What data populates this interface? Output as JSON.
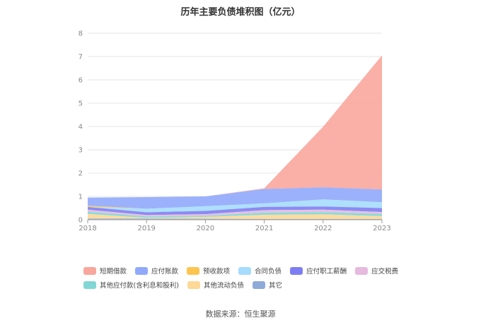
{
  "chart_data": {
    "type": "area",
    "stacked": true,
    "title": "历年主要负债堆积图（亿元）",
    "source": "数据来源：恒生聚源",
    "x": [
      "2018",
      "2019",
      "2020",
      "2021",
      "2022",
      "2023"
    ],
    "ylim": [
      0,
      8
    ],
    "yticks": [
      "0",
      "1",
      "2",
      "3",
      "4",
      "5",
      "6",
      "7",
      "8"
    ],
    "grid": true,
    "legend_position": "bottom",
    "series": [
      {
        "name": "短期借款",
        "color": "#f9a69d",
        "values": [
          0,
          0,
          0,
          0.03,
          2.6,
          5.75
        ]
      },
      {
        "name": "应付账款",
        "color": "#91a9fb",
        "values": [
          0.35,
          0.5,
          0.42,
          0.62,
          0.52,
          0.55
        ]
      },
      {
        "name": "预收款项",
        "color": "#fdc44f",
        "values": [
          0.05,
          0.0,
          0.0,
          0.0,
          0.0,
          0.0
        ]
      },
      {
        "name": "合同负债",
        "color": "#a5dcfd",
        "values": [
          0,
          0.15,
          0.2,
          0.15,
          0.3,
          0.25
        ]
      },
      {
        "name": "应付职工薪酬",
        "color": "#7e7ef2",
        "values": [
          0.12,
          0.12,
          0.14,
          0.14,
          0.14,
          0.17
        ]
      },
      {
        "name": "应交税费",
        "color": "#e6b9de",
        "values": [
          0.08,
          0.06,
          0.07,
          0.1,
          0.1,
          0.08
        ]
      },
      {
        "name": "其他应付款(含利息和股利)",
        "color": "#82d6d6",
        "values": [
          0.1,
          0.06,
          0.05,
          0.1,
          0.1,
          0.1
        ]
      },
      {
        "name": "其他流动负债",
        "color": "#fdd896",
        "values": [
          0.2,
          0.03,
          0.08,
          0.18,
          0.2,
          0.12
        ]
      },
      {
        "name": "其它",
        "color": "#8eaad8",
        "values": [
          0.05,
          0.05,
          0.04,
          0.03,
          0.03,
          0.03
        ]
      }
    ]
  }
}
